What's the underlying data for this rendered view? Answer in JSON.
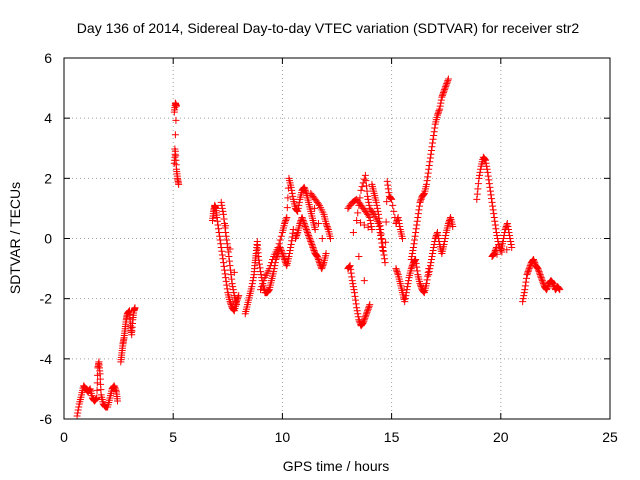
{
  "chart_data": {
    "type": "scatter",
    "title": "Day 136 of 2014, Sidereal Day-to-day VTEC variation (SDTVAR) for receiver str2",
    "xlabel": "GPS time / hours",
    "ylabel": "SDTVAR / TECUs",
    "xlim": [
      0,
      25
    ],
    "ylim": [
      -6,
      6
    ],
    "xticks": [
      0,
      5,
      10,
      15,
      20,
      25
    ],
    "yticks": [
      -6,
      -4,
      -2,
      0,
      2,
      4,
      6
    ],
    "xtick_labels": [
      "0",
      "5",
      "10",
      "15",
      "20",
      "25"
    ],
    "ytick_labels": [
      "-6",
      "-4",
      "-2",
      "0",
      "2",
      "4",
      "6"
    ],
    "grid": true,
    "marker": "+",
    "color": "#ff0000",
    "series": [
      {
        "name": "SDTVAR",
        "segments": [
          [
            [
              0.6,
              -5.9
            ],
            [
              0.7,
              -5.5
            ],
            [
              0.8,
              -5.2
            ],
            [
              0.9,
              -4.9
            ],
            [
              1.0,
              -5.0
            ],
            [
              1.1,
              -5.1
            ],
            [
              1.2,
              -5.0
            ],
            [
              1.3,
              -5.3
            ],
            [
              1.4,
              -5.4
            ],
            [
              1.5,
              -5.3
            ],
            [
              1.55,
              -4.3
            ],
            [
              1.6,
              -4.1
            ],
            [
              1.65,
              -4.5
            ],
            [
              1.7,
              -5.2
            ],
            [
              1.8,
              -5.5
            ],
            [
              1.9,
              -5.6
            ],
            [
              2.0,
              -5.6
            ],
            [
              2.1,
              -5.3
            ],
            [
              2.2,
              -5.0
            ],
            [
              2.3,
              -4.9
            ],
            [
              2.4,
              -5.1
            ],
            [
              2.45,
              -5.4
            ]
          ],
          [
            [
              2.6,
              -4.1
            ],
            [
              2.65,
              -3.8
            ],
            [
              2.7,
              -3.5
            ],
            [
              2.75,
              -3.3
            ],
            [
              2.8,
              -3.0
            ],
            [
              2.85,
              -2.7
            ],
            [
              2.9,
              -2.5
            ],
            [
              3.0,
              -2.4
            ],
            [
              3.05,
              -2.9
            ],
            [
              3.1,
              -3.2
            ],
            [
              3.15,
              -2.7
            ],
            [
              3.2,
              -2.4
            ],
            [
              3.25,
              -2.3
            ]
          ],
          [
            [
              5.05,
              4.2
            ],
            [
              5.1,
              4.5
            ],
            [
              5.15,
              4.4
            ],
            [
              5.05,
              2.5
            ],
            [
              5.1,
              2.9
            ],
            [
              5.15,
              2.3
            ],
            [
              5.2,
              2.0
            ],
            [
              5.25,
              1.8
            ]
          ],
          [
            [
              6.8,
              0.6
            ],
            [
              6.85,
              0.9
            ],
            [
              6.9,
              1.1
            ],
            [
              6.95,
              1.0
            ],
            [
              7.0,
              0.7
            ],
            [
              7.1,
              0.2
            ],
            [
              7.2,
              -0.3
            ],
            [
              7.3,
              -0.8
            ],
            [
              7.4,
              -1.3
            ],
            [
              7.5,
              -1.8
            ],
            [
              7.6,
              -2.1
            ],
            [
              7.7,
              -2.3
            ],
            [
              7.8,
              -2.4
            ],
            [
              7.9,
              -2.1
            ],
            [
              8.0,
              -1.9
            ],
            [
              7.2,
              1.2
            ],
            [
              7.3,
              0.8
            ],
            [
              7.4,
              0.2
            ],
            [
              7.5,
              -0.3
            ],
            [
              7.6,
              -0.9
            ],
            [
              7.7,
              -1.5
            ],
            [
              7.8,
              -1.9
            ],
            [
              7.9,
              -2.2
            ]
          ],
          [
            [
              8.3,
              -2.5
            ],
            [
              8.4,
              -2.2
            ],
            [
              8.5,
              -1.9
            ],
            [
              8.6,
              -1.6
            ],
            [
              8.7,
              -1.2
            ],
            [
              8.75,
              -0.8
            ],
            [
              8.8,
              -0.5
            ],
            [
              8.85,
              -0.1
            ],
            [
              8.9,
              -0.6
            ],
            [
              9.0,
              -1.1
            ],
            [
              9.1,
              -1.5
            ],
            [
              9.2,
              -1.8
            ],
            [
              9.3,
              -1.8
            ],
            [
              9.4,
              -1.7
            ],
            [
              9.5,
              -1.4
            ],
            [
              9.6,
              -1.1
            ],
            [
              9.7,
              -0.7
            ],
            [
              9.8,
              -0.5
            ],
            [
              9.9,
              -0.3
            ],
            [
              10.0,
              -0.5
            ],
            [
              10.1,
              -0.7
            ],
            [
              10.2,
              -0.9
            ],
            [
              10.3,
              -0.6
            ],
            [
              10.4,
              -0.2
            ],
            [
              10.5,
              0.3
            ]
          ],
          [
            [
              9.0,
              -1.7
            ],
            [
              9.2,
              -1.3
            ],
            [
              9.4,
              -1.0
            ],
            [
              9.6,
              -0.6
            ],
            [
              9.8,
              -0.3
            ],
            [
              10.0,
              0.2
            ],
            [
              10.1,
              0.5
            ],
            [
              10.2,
              0.7
            ],
            [
              10.3,
              2.0
            ],
            [
              10.4,
              1.7
            ],
            [
              10.5,
              1.3
            ],
            [
              10.6,
              1.0
            ],
            [
              10.7,
              0.9
            ],
            [
              10.8,
              1.3
            ],
            [
              10.9,
              1.6
            ],
            [
              11.0,
              1.7
            ],
            [
              11.1,
              1.5
            ],
            [
              11.2,
              1.2
            ],
            [
              11.3,
              0.9
            ],
            [
              11.4,
              0.6
            ],
            [
              11.5,
              0.3
            ]
          ],
          [
            [
              10.6,
              0.0
            ],
            [
              10.7,
              0.2
            ],
            [
              10.8,
              0.5
            ],
            [
              10.9,
              0.7
            ],
            [
              11.0,
              0.5
            ],
            [
              11.1,
              0.3
            ],
            [
              11.2,
              0.1
            ],
            [
              11.3,
              -0.1
            ],
            [
              11.4,
              -0.3
            ],
            [
              11.5,
              -0.5
            ],
            [
              11.6,
              -0.6
            ],
            [
              11.7,
              -0.8
            ],
            [
              11.8,
              -1.0
            ],
            [
              11.9,
              -0.8
            ],
            [
              12.0,
              -0.5
            ],
            [
              11.3,
              1.5
            ],
            [
              11.5,
              1.3
            ],
            [
              11.7,
              1.1
            ],
            [
              11.9,
              0.8
            ],
            [
              12.0,
              0.5
            ],
            [
              12.1,
              0.3
            ],
            [
              12.2,
              0.0
            ]
          ],
          [
            [
              13.0,
              -1.0
            ],
            [
              13.1,
              -0.9
            ],
            [
              13.2,
              -1.4
            ],
            [
              13.3,
              -1.8
            ],
            [
              13.4,
              -2.3
            ],
            [
              13.5,
              -2.7
            ],
            [
              13.6,
              -2.9
            ],
            [
              13.7,
              -2.8
            ],
            [
              13.8,
              -2.6
            ],
            [
              13.9,
              -2.4
            ],
            [
              14.0,
              -2.2
            ],
            [
              13.0,
              1.0
            ],
            [
              13.2,
              1.2
            ],
            [
              13.4,
              1.3
            ],
            [
              13.6,
              1.1
            ],
            [
              13.8,
              0.9
            ],
            [
              14.0,
              0.7
            ],
            [
              14.1,
              0.3
            ],
            [
              13.4,
              0.6
            ],
            [
              13.6,
              1.6
            ],
            [
              13.8,
              2.1
            ],
            [
              13.9,
              1.4
            ],
            [
              14.0,
              1.0
            ],
            [
              14.2,
              0.8
            ],
            [
              14.4,
              0.5
            ],
            [
              14.5,
              0.1
            ],
            [
              14.6,
              -0.4
            ]
          ],
          [
            [
              14.1,
              1.8
            ],
            [
              14.2,
              1.5
            ],
            [
              14.3,
              1.2
            ],
            [
              14.4,
              0.8
            ],
            [
              14.5,
              0.3
            ],
            [
              14.6,
              -0.3
            ],
            [
              14.7,
              -0.8
            ],
            [
              14.8,
              1.9
            ],
            [
              14.9,
              1.4
            ],
            [
              15.0,
              1.3
            ],
            [
              15.2,
              0.5
            ],
            [
              15.3,
              0.7
            ],
            [
              15.4,
              0.3
            ],
            [
              15.5,
              0.0
            ]
          ],
          [
            [
              15.2,
              -1.0
            ],
            [
              15.3,
              -1.2
            ],
            [
              15.4,
              -1.5
            ],
            [
              15.5,
              -1.8
            ],
            [
              15.6,
              -2.1
            ],
            [
              15.7,
              -1.7
            ],
            [
              15.8,
              -1.3
            ],
            [
              15.9,
              -1.0
            ],
            [
              16.0,
              -0.8
            ],
            [
              16.1,
              -0.7
            ],
            [
              16.2,
              -1.2
            ],
            [
              16.3,
              -1.5
            ],
            [
              16.4,
              -1.7
            ],
            [
              16.5,
              -1.8
            ],
            [
              16.6,
              -1.5
            ],
            [
              16.7,
              -1.0
            ]
          ],
          [
            [
              15.9,
              -0.7
            ],
            [
              16.0,
              -0.3
            ],
            [
              16.1,
              0.2
            ],
            [
              16.2,
              0.7
            ],
            [
              16.3,
              1.2
            ],
            [
              16.4,
              1.4
            ],
            [
              16.5,
              1.5
            ],
            [
              16.6,
              1.8
            ],
            [
              16.7,
              2.3
            ],
            [
              16.8,
              2.8
            ],
            [
              16.9,
              3.3
            ],
            [
              17.0,
              3.8
            ],
            [
              17.1,
              4.1
            ],
            [
              17.2,
              4.3
            ],
            [
              17.3,
              4.7
            ],
            [
              17.4,
              4.9
            ],
            [
              17.5,
              5.1
            ],
            [
              17.6,
              5.3
            ]
          ],
          [
            [
              16.7,
              -1.2
            ],
            [
              16.8,
              -0.8
            ],
            [
              16.9,
              -0.4
            ],
            [
              17.0,
              0.0
            ],
            [
              17.1,
              0.2
            ],
            [
              17.2,
              -0.2
            ],
            [
              17.3,
              -0.5
            ],
            [
              17.4,
              -0.2
            ],
            [
              17.5,
              0.2
            ],
            [
              17.6,
              0.5
            ],
            [
              17.7,
              0.7
            ],
            [
              17.8,
              0.4
            ]
          ],
          [
            [
              18.9,
              1.3
            ],
            [
              19.0,
              2.0
            ],
            [
              19.1,
              2.4
            ],
            [
              19.2,
              2.7
            ],
            [
              19.3,
              2.6
            ],
            [
              19.4,
              2.2
            ],
            [
              19.5,
              1.7
            ],
            [
              19.6,
              1.2
            ],
            [
              19.7,
              0.7
            ],
            [
              19.8,
              0.2
            ],
            [
              19.9,
              -0.2
            ],
            [
              20.0,
              -0.4
            ],
            [
              20.1,
              -0.1
            ],
            [
              20.2,
              0.3
            ],
            [
              20.3,
              0.5
            ],
            [
              20.4,
              0.1
            ],
            [
              20.5,
              -0.3
            ],
            [
              19.6,
              -0.6
            ],
            [
              19.7,
              -0.5
            ],
            [
              19.8,
              -0.3
            ]
          ],
          [
            [
              21.0,
              -2.1
            ],
            [
              21.1,
              -1.7
            ],
            [
              21.2,
              -1.2
            ],
            [
              21.3,
              -1.0
            ],
            [
              21.4,
              -0.8
            ],
            [
              21.5,
              -0.7
            ],
            [
              21.6,
              -0.9
            ],
            [
              21.7,
              -1.0
            ],
            [
              21.8,
              -1.2
            ],
            [
              21.9,
              -1.4
            ],
            [
              22.0,
              -1.6
            ],
            [
              22.1,
              -1.7
            ],
            [
              22.2,
              -1.5
            ],
            [
              22.3,
              -1.4
            ],
            [
              22.4,
              -1.5
            ],
            [
              22.5,
              -1.7
            ],
            [
              22.6,
              -1.6
            ],
            [
              22.7,
              -1.7
            ]
          ]
        ]
      }
    ]
  }
}
